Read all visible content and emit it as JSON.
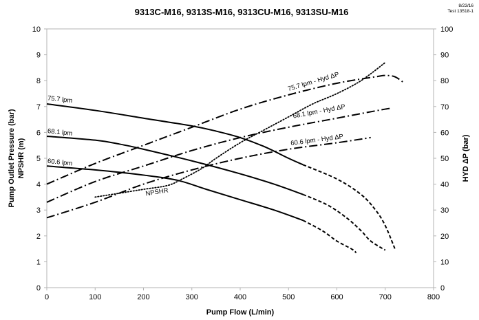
{
  "chart_data": {
    "type": "line",
    "title": "9313C-M16, 9313S-M16, 9313CU-M16, 9313SU-M16",
    "notes": [
      "8/23/16",
      "Test 13518-1"
    ],
    "xlabel": "Pump Flow (L/min)",
    "ylabel": "Pump Outlet Pressure (bar)",
    "ylabel2": "NPSHR (m)",
    "y2label": "HYD ΔP (bar)",
    "xlim": [
      0,
      800
    ],
    "ylim": [
      0,
      10
    ],
    "y2lim": [
      0,
      100
    ],
    "xticks": [
      "0",
      "100",
      "200",
      "300",
      "400",
      "500",
      "600",
      "700",
      "800"
    ],
    "yticks": [
      "0",
      "1",
      "2",
      "3",
      "4",
      "5",
      "6",
      "7",
      "8",
      "9",
      "10"
    ],
    "y2ticks": [
      "0",
      "10",
      "20",
      "30",
      "40",
      "50",
      "60",
      "70",
      "80",
      "90",
      "100"
    ],
    "grid": false,
    "legend": "none",
    "series": [
      {
        "name": "75.7 lpm",
        "axis": "left",
        "style": "solid",
        "x": [
          0,
          100,
          200,
          300,
          350,
          400,
          450,
          500,
          530
        ],
        "y": [
          7.1,
          6.85,
          6.55,
          6.25,
          6.05,
          5.8,
          5.45,
          5.0,
          4.75
        ],
        "label_pos": [
          1,
          7.25
        ]
      },
      {
        "name": "75.7 lpm (ext)",
        "axis": "left",
        "style": "dashed",
        "x": [
          530,
          600,
          650,
          680,
          700,
          720
        ],
        "y": [
          4.75,
          4.2,
          3.6,
          3.0,
          2.4,
          1.5
        ]
      },
      {
        "name": "68.1 lpm",
        "axis": "left",
        "style": "solid",
        "x": [
          0,
          100,
          150,
          200,
          300,
          400,
          470,
          530
        ],
        "y": [
          5.85,
          5.7,
          5.55,
          5.35,
          4.9,
          4.4,
          4.0,
          3.6
        ],
        "label_pos": [
          1,
          5.98
        ]
      },
      {
        "name": "68.1 lpm (ext)",
        "axis": "left",
        "style": "dashed",
        "x": [
          530,
          580,
          620,
          650,
          670,
          700
        ],
        "y": [
          3.6,
          3.2,
          2.7,
          2.2,
          1.8,
          1.45
        ]
      },
      {
        "name": "60.6 lpm",
        "axis": "left",
        "style": "solid",
        "x": [
          0,
          100,
          200,
          270,
          330,
          400,
          470,
          530
        ],
        "y": [
          4.7,
          4.55,
          4.35,
          4.15,
          3.8,
          3.4,
          3.0,
          2.6
        ],
        "label_pos": [
          1,
          4.82
        ]
      },
      {
        "name": "60.6 lpm (ext)",
        "axis": "left",
        "style": "dashed",
        "x": [
          530,
          570,
          600,
          630,
          640
        ],
        "y": [
          2.6,
          2.2,
          1.8,
          1.5,
          1.35
        ]
      },
      {
        "name": "NPSHR",
        "axis": "left",
        "style": "dotted",
        "x": [
          100,
          150,
          200,
          250,
          280,
          320,
          350,
          400,
          450,
          500,
          550,
          600,
          650,
          700
        ],
        "y": [
          3.5,
          3.65,
          3.8,
          3.95,
          4.2,
          4.6,
          5.0,
          5.6,
          6.1,
          6.6,
          7.1,
          7.5,
          8.0,
          8.7
        ],
        "label_pos": [
          205,
          3.55
        ]
      },
      {
        "name": "75.7 lpm - Hyd ΔP",
        "axis": "right",
        "style": "dashdot",
        "x": [
          0,
          100,
          200,
          300,
          400,
          500,
          600,
          680,
          700,
          720,
          740
        ],
        "y": [
          40,
          48,
          55,
          62,
          69,
          74.5,
          79,
          81.5,
          82,
          81.5,
          79
        ],
        "label_pos": [
          500,
          76
        ]
      },
      {
        "name": "68.1 lpm - Hyd ΔP",
        "axis": "right",
        "style": "dashdot",
        "x": [
          0,
          100,
          200,
          300,
          400,
          500,
          600,
          700,
          710
        ],
        "y": [
          33,
          41,
          47,
          53,
          58,
          62,
          65.5,
          69,
          69
        ],
        "label_pos": [
          510,
          65.5
        ]
      },
      {
        "name": "60.6 lpm - Hyd ΔP",
        "axis": "right",
        "style": "dashdot",
        "x": [
          0,
          100,
          200,
          300,
          400,
          500,
          600,
          670
        ],
        "y": [
          27,
          33,
          40,
          45.5,
          50,
          53.5,
          56,
          58
        ],
        "label_pos": [
          505,
          55
        ]
      }
    ]
  }
}
